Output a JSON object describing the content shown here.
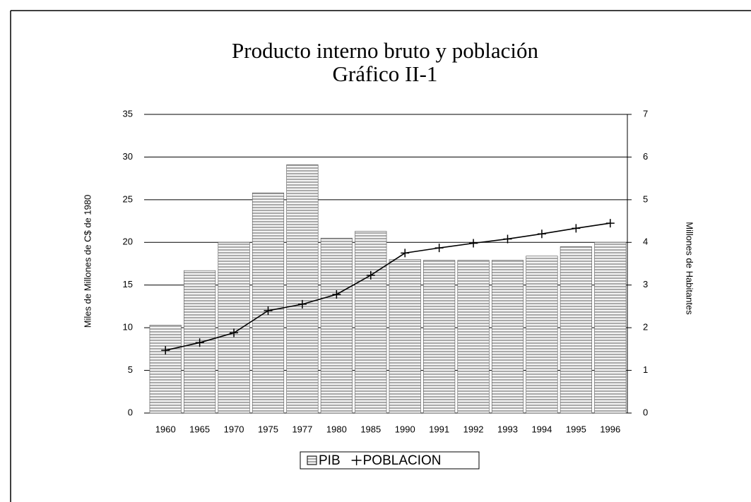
{
  "chart_data": {
    "type": "bar_line",
    "title": "Producto interno bruto y población",
    "subtitle": "Gráfico II-1",
    "y_label": "Miles de Millones de C$ de 1980",
    "y2_label": "Millones de Habitantes",
    "categories": [
      "1960",
      "1965",
      "1970",
      "1975",
      "1977",
      "1980",
      "1985",
      "1990",
      "1991",
      "1992",
      "1993",
      "1994",
      "1995",
      "1996"
    ],
    "series": [
      {
        "name": "PIB",
        "type": "bar",
        "color": "#8a8a8a",
        "values": [
          10.3,
          16.7,
          20,
          25.8,
          29.1,
          20.5,
          21.3,
          18,
          17.9,
          17.9,
          17.9,
          18.4,
          19.5,
          20
        ]
      },
      {
        "name": "POBLACION",
        "type": "line",
        "axis": "y2",
        "color": "#000000",
        "values": [
          1.47,
          1.65,
          1.88,
          2.4,
          2.55,
          2.78,
          3.23,
          3.75,
          3.87,
          3.98,
          4.08,
          4.2,
          4.33,
          4.45
        ]
      }
    ],
    "ylim": [
      0,
      35
    ],
    "yticks": [
      0,
      5,
      10,
      15,
      20,
      25,
      30,
      35
    ],
    "y2lim": [
      0,
      7
    ],
    "y2ticks": [
      0,
      1,
      2,
      3,
      4,
      5,
      6,
      7
    ],
    "grid": true,
    "legend": "bottom"
  }
}
